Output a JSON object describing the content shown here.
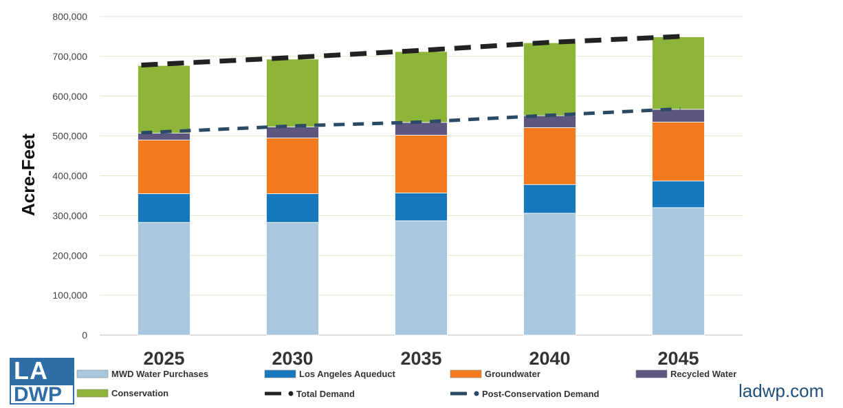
{
  "chart_data": {
    "type": "bar",
    "stacked": true,
    "categories": [
      "2025",
      "2030",
      "2035",
      "2040",
      "2045"
    ],
    "ylabel": "Acre-Feet",
    "ylim": [
      0,
      800000
    ],
    "yticks": [
      "0",
      "100,000",
      "200,000",
      "300,000",
      "400,000",
      "500,000",
      "600,000",
      "700,000",
      "800,000"
    ],
    "grid": true,
    "legend_position": "bottom",
    "series": [
      {
        "name": "MWD Water Purchases",
        "color": "#a9c8df",
        "values": [
          283000,
          283000,
          287000,
          306000,
          320000
        ]
      },
      {
        "name": "Los Angeles Aqueduct",
        "color": "#1878bd",
        "values": [
          72000,
          72000,
          70000,
          72000,
          67000
        ]
      },
      {
        "name": "Groundwater",
        "color": "#f47a20",
        "values": [
          135000,
          140000,
          145000,
          143000,
          148000
        ]
      },
      {
        "name": "Recycled Water",
        "color": "#5d567f",
        "values": [
          17000,
          28000,
          32000,
          30000,
          32000
        ]
      },
      {
        "name": "Conservation",
        "color": "#8db53a",
        "values": [
          170000,
          170000,
          178000,
          183000,
          182000
        ]
      }
    ],
    "lines": [
      {
        "name": "Total Demand",
        "color": "#222222",
        "values": [
          678000,
          697000,
          715000,
          735000,
          750000
        ]
      },
      {
        "name": "Post-Conservation Demand",
        "color": "#2b4a66",
        "values": [
          508000,
          525000,
          535000,
          552000,
          568000
        ]
      }
    ]
  },
  "branding": {
    "logo_top": "LA",
    "logo_bottom": "DWP",
    "website": "ladwp.com"
  }
}
